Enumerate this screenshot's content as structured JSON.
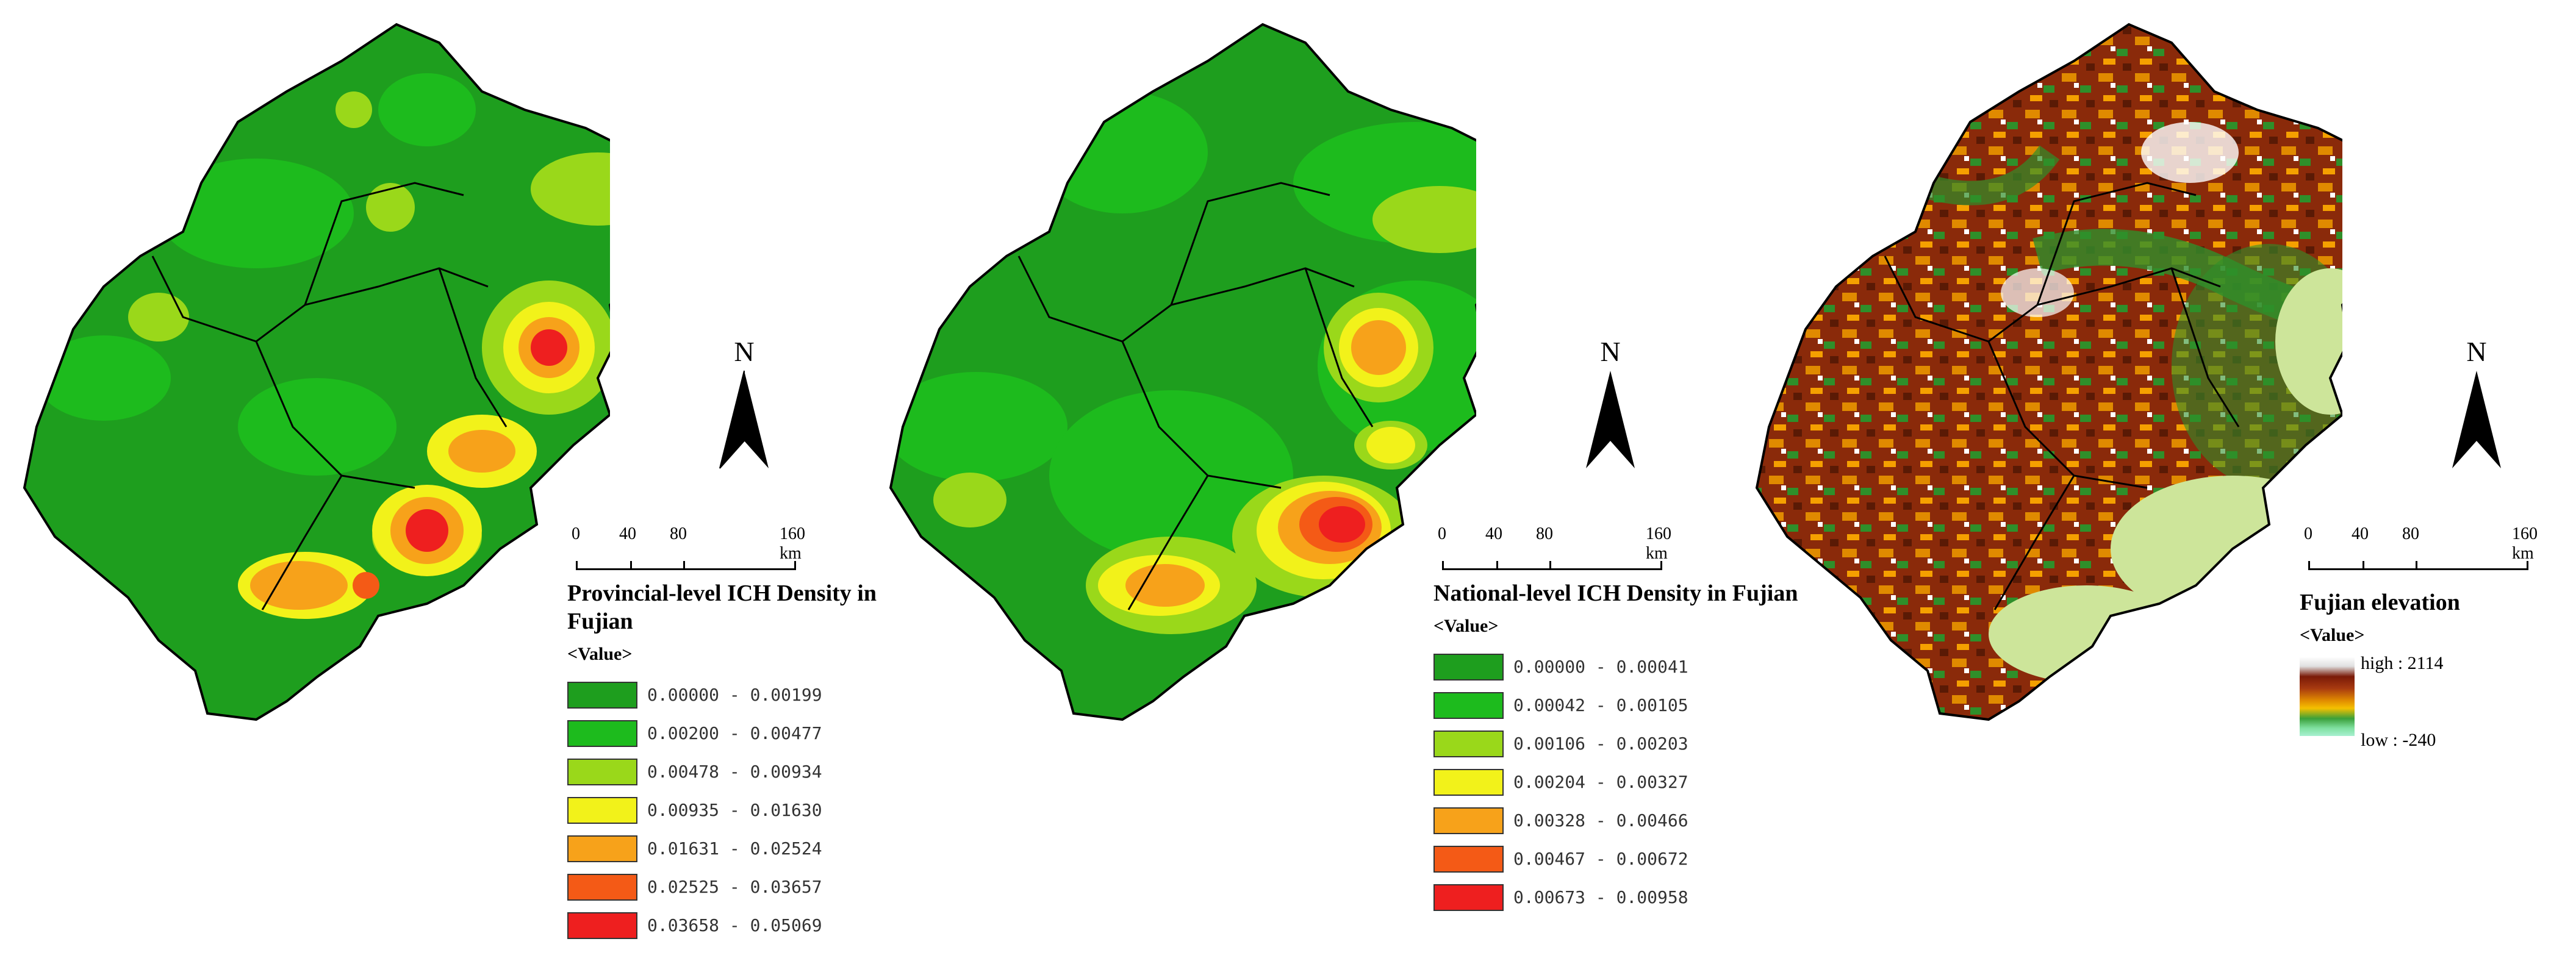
{
  "panels": [
    {
      "title": "Provincial-level ICH Density in Fujian",
      "value_label": "<Value>",
      "scale": {
        "ticks": [
          "0",
          "40",
          "80"
        ],
        "end": "160 km"
      },
      "north": "N",
      "legend": [
        {
          "range": "0.00000 - 0.00199",
          "color": "#1e9e1e"
        },
        {
          "range": "0.00200 - 0.00477",
          "color": "#1dbb1d"
        },
        {
          "range": "0.00478 - 0.00934",
          "color": "#9ad81a"
        },
        {
          "range": "0.00935 - 0.01630",
          "color": "#f2f21a"
        },
        {
          "range": "0.01631 - 0.02524",
          "color": "#f7a21a"
        },
        {
          "range": "0.02525 - 0.03657",
          "color": "#f45a16"
        },
        {
          "range": "0.03658 - 0.05069",
          "color": "#ee1f1f"
        }
      ]
    },
    {
      "title": "National-level ICH Density in Fujian",
      "value_label": "<Value>",
      "scale": {
        "ticks": [
          "0",
          "40",
          "80"
        ],
        "end": "160 km"
      },
      "north": "N",
      "legend": [
        {
          "range": "0.00000 - 0.00041",
          "color": "#1e9e1e"
        },
        {
          "range": "0.00042 - 0.00105",
          "color": "#1dbb1d"
        },
        {
          "range": "0.00106 - 0.00203",
          "color": "#9ad81a"
        },
        {
          "range": "0.00204 - 0.00327",
          "color": "#f2f21a"
        },
        {
          "range": "0.00328 - 0.00466",
          "color": "#f7a21a"
        },
        {
          "range": "0.00467 - 0.00672",
          "color": "#f45a16"
        },
        {
          "range": "0.00673 - 0.00958",
          "color": "#ee1f1f"
        }
      ]
    },
    {
      "title": "Fujian elevation",
      "value_label": "<Value>",
      "scale": {
        "ticks": [
          "0",
          "40",
          "80"
        ],
        "end": "160 km"
      },
      "north": "N",
      "high_label": "high : 2114",
      "low_label": "low : -240"
    }
  ]
}
